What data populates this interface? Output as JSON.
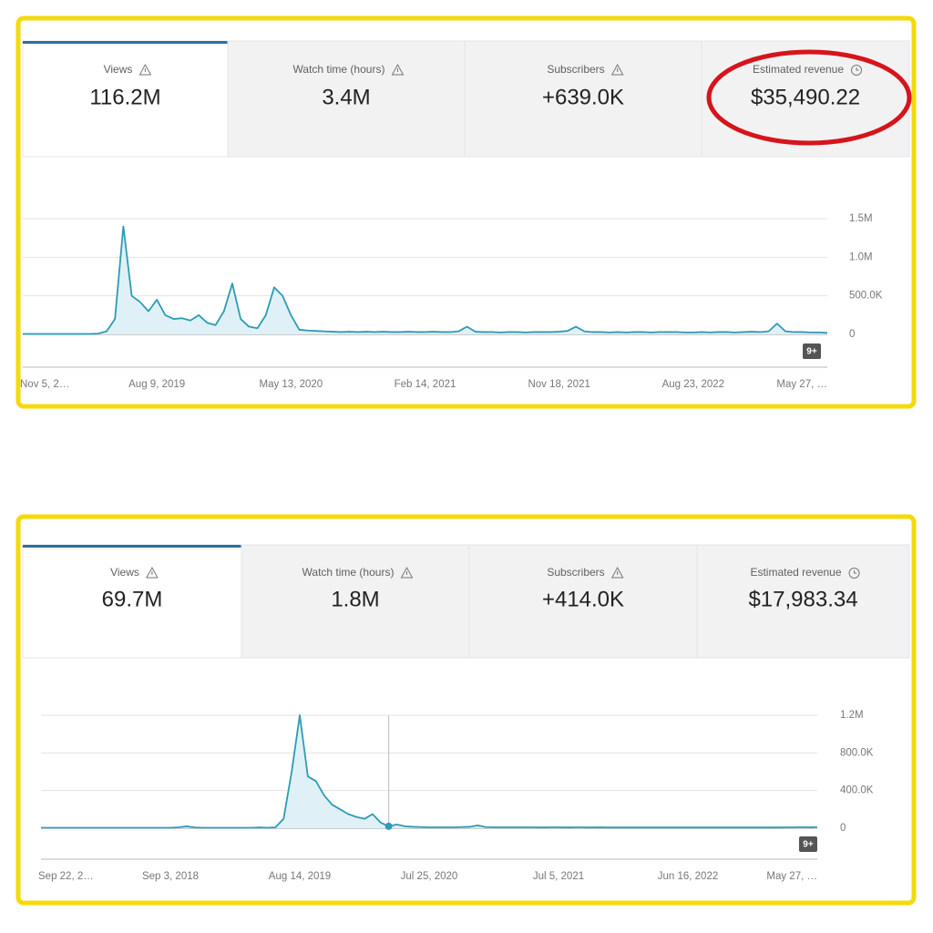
{
  "panels": [
    {
      "metrics": [
        {
          "label": "Views",
          "value": "116.2M"
        },
        {
          "label": "Watch time (hours)",
          "value": "3.4M"
        },
        {
          "label": "Subscribers",
          "value": "+639.0K"
        },
        {
          "label": "Estimated revenue",
          "value": "$35,490.22"
        }
      ]
    },
    {
      "metrics": [
        {
          "label": "Views",
          "value": "69.7M"
        },
        {
          "label": "Watch time (hours)",
          "value": "1.8M"
        },
        {
          "label": "Subscribers",
          "value": "+414.0K"
        },
        {
          "label": "Estimated revenue",
          "value": "$17,983.34"
        }
      ]
    }
  ],
  "chart_data": [
    {
      "type": "line",
      "color": "#2e9bb5",
      "annotation": "9+",
      "ylim": [
        0,
        1500000
      ],
      "yticks": [
        {
          "value": 0,
          "label": "0"
        },
        {
          "value": 500000,
          "label": "500.0K"
        },
        {
          "value": 1000000,
          "label": "1.0M"
        },
        {
          "value": 1500000,
          "label": "1.5M"
        }
      ],
      "grid": true,
      "categories": [
        "Nov 5, 2…",
        null,
        null,
        null,
        null,
        null,
        null,
        null,
        null,
        null,
        null,
        null,
        null,
        null,
        null,
        null,
        "Aug 9, 2019",
        null,
        null,
        null,
        null,
        null,
        null,
        null,
        null,
        null,
        null,
        null,
        null,
        null,
        null,
        null,
        "May 13, 2020",
        null,
        null,
        null,
        null,
        null,
        null,
        null,
        null,
        null,
        null,
        null,
        null,
        null,
        null,
        null,
        "Feb 14, 2021",
        null,
        null,
        null,
        null,
        null,
        null,
        null,
        null,
        null,
        null,
        null,
        null,
        null,
        null,
        null,
        "Nov 18, 2021",
        null,
        null,
        null,
        null,
        null,
        null,
        null,
        null,
        null,
        null,
        null,
        null,
        null,
        null,
        null,
        "Aug 23, 2022",
        null,
        null,
        null,
        null,
        null,
        null,
        null,
        null,
        null,
        null,
        null,
        null,
        null,
        null,
        null,
        "May 27, …"
      ],
      "values": [
        5000,
        5000,
        5000,
        5000,
        5000,
        5000,
        5000,
        5000,
        5000,
        10000,
        40000,
        200000,
        1400000,
        500000,
        420000,
        300000,
        450000,
        250000,
        200000,
        210000,
        180000,
        250000,
        150000,
        120000,
        300000,
        660000,
        200000,
        100000,
        80000,
        250000,
        610000,
        500000,
        250000,
        60000,
        50000,
        45000,
        40000,
        35000,
        30000,
        35000,
        30000,
        35000,
        30000,
        35000,
        30000,
        30000,
        35000,
        30000,
        30000,
        35000,
        30000,
        30000,
        40000,
        100000,
        35000,
        30000,
        30000,
        25000,
        30000,
        30000,
        25000,
        30000,
        30000,
        30000,
        35000,
        45000,
        100000,
        40000,
        30000,
        30000,
        25000,
        30000,
        25000,
        30000,
        30000,
        25000,
        30000,
        30000,
        30000,
        25000,
        25000,
        30000,
        25000,
        30000,
        30000,
        25000,
        30000,
        35000,
        30000,
        40000,
        140000,
        40000,
        30000,
        30000,
        25000,
        25000,
        20000
      ]
    },
    {
      "type": "line",
      "color": "#2e9bb5",
      "annotation": "9+",
      "ylim": [
        0,
        1200000
      ],
      "yticks": [
        {
          "value": 0,
          "label": "0"
        },
        {
          "value": 400000,
          "label": "400.0K"
        },
        {
          "value": 800000,
          "label": "800.0K"
        },
        {
          "value": 1200000,
          "label": "1.2M"
        }
      ],
      "grid": true,
      "categories": [
        "Sep 22, 2…",
        null,
        null,
        null,
        null,
        null,
        null,
        null,
        null,
        null,
        null,
        null,
        null,
        null,
        null,
        null,
        "Sep 3, 2018",
        null,
        null,
        null,
        null,
        null,
        null,
        null,
        null,
        null,
        null,
        null,
        null,
        null,
        null,
        null,
        "Aug 14, 2019",
        null,
        null,
        null,
        null,
        null,
        null,
        null,
        null,
        null,
        null,
        null,
        null,
        null,
        null,
        null,
        "Jul 25, 2020",
        null,
        null,
        null,
        null,
        null,
        null,
        null,
        null,
        null,
        null,
        null,
        null,
        null,
        null,
        null,
        "Jul 5, 2021",
        null,
        null,
        null,
        null,
        null,
        null,
        null,
        null,
        null,
        null,
        null,
        null,
        null,
        null,
        null,
        "Jun 16, 2022",
        null,
        null,
        null,
        null,
        null,
        null,
        null,
        null,
        null,
        null,
        null,
        null,
        null,
        null,
        null,
        "May 27, …"
      ],
      "values": [
        5000,
        5000,
        5000,
        5000,
        5000,
        5000,
        5000,
        5000,
        5000,
        5000,
        5000,
        5000,
        5000,
        5000,
        5000,
        5000,
        5000,
        10000,
        20000,
        8000,
        5000,
        5000,
        5000,
        5000,
        5000,
        5000,
        5000,
        8000,
        5000,
        10000,
        100000,
        600000,
        1200000,
        550000,
        500000,
        350000,
        250000,
        200000,
        150000,
        120000,
        100000,
        150000,
        60000,
        20000,
        40000,
        20000,
        15000,
        12000,
        10000,
        10000,
        10000,
        10000,
        12000,
        15000,
        30000,
        12000,
        10000,
        10000,
        10000,
        10000,
        10000,
        10000,
        8000,
        10000,
        10000,
        8000,
        10000,
        10000,
        8000,
        10000,
        8000,
        8000,
        8000,
        8000,
        8000,
        8000,
        8000,
        8000,
        8000,
        8000,
        8000,
        8000,
        8000,
        8000,
        8000,
        8000,
        8000,
        8000,
        8000,
        8000,
        8000,
        8000,
        10000,
        10000,
        12000,
        10000,
        12000
      ]
    }
  ]
}
